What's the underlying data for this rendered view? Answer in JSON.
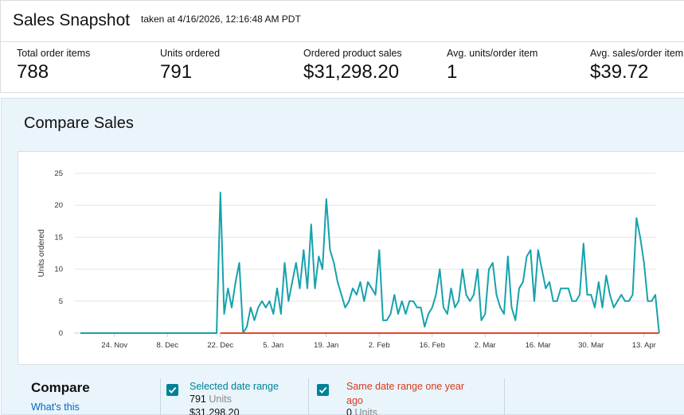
{
  "snapshot": {
    "title": "Sales Snapshot",
    "taken": "taken at 4/16/2026, 12:16:48 AM PDT",
    "metrics": [
      {
        "label": "Total order items",
        "value": "788"
      },
      {
        "label": "Units ordered",
        "value": "791"
      },
      {
        "label": "Ordered product sales",
        "value": "$31,298.20"
      },
      {
        "label": "Avg. units/order item",
        "value": "1"
      },
      {
        "label": "Avg. sales/order item",
        "value": "$39.72"
      }
    ]
  },
  "compare": {
    "title": "Compare Sales",
    "legend_title": "Compare",
    "legend_link": "What's this",
    "series": [
      {
        "label": "Selected date range",
        "units_value": "791",
        "units_word": "Units",
        "sales": "$31,298.20",
        "color": "#16a2ad",
        "checked": true
      },
      {
        "label": "Same date range one year ago",
        "units_value": "0",
        "units_word": "Units",
        "color": "#e8442c",
        "checked": true
      }
    ]
  },
  "colors": {
    "selected_line": "#16a2ad",
    "previous_line": "#e8442c",
    "checkbox": "#008296",
    "link": "#0066c0",
    "panel_bg": "#e9f4fb"
  },
  "chart_data": {
    "type": "line",
    "ylabel": "Units ordered",
    "ylim": [
      0,
      25
    ],
    "yticks": [
      0,
      5,
      10,
      15,
      20,
      25
    ],
    "xlim": [
      "2025-11-15",
      "2026-04-16"
    ],
    "xticks": [
      {
        "label": "24. Nov",
        "date": "2025-11-24"
      },
      {
        "label": "8. Dec",
        "date": "2025-12-08"
      },
      {
        "label": "22. Dec",
        "date": "2025-12-22"
      },
      {
        "label": "5. Jan",
        "date": "2026-01-05"
      },
      {
        "label": "19. Jan",
        "date": "2026-01-19"
      },
      {
        "label": "2. Feb",
        "date": "2026-02-02"
      },
      {
        "label": "16. Feb",
        "date": "2026-02-16"
      },
      {
        "label": "2. Mar",
        "date": "2026-03-02"
      },
      {
        "label": "16. Mar",
        "date": "2026-03-16"
      },
      {
        "label": "30. Mar",
        "date": "2026-03-30"
      },
      {
        "label": "13. Apr",
        "date": "2026-04-13"
      }
    ],
    "grid": true,
    "series": [
      {
        "name": "Selected date range",
        "points": [
          [
            "2025-11-15",
            0
          ],
          [
            "2025-12-21",
            0
          ],
          [
            "2025-12-22",
            22
          ],
          [
            "2025-12-23",
            3
          ],
          [
            "2025-12-24",
            7
          ],
          [
            "2025-12-25",
            4
          ],
          [
            "2025-12-26",
            8
          ],
          [
            "2025-12-27",
            11
          ],
          [
            "2025-12-28",
            0
          ],
          [
            "2025-12-29",
            1
          ],
          [
            "2025-12-30",
            4
          ],
          [
            "2025-12-31",
            2
          ],
          [
            "2026-01-01",
            4
          ],
          [
            "2026-01-02",
            5
          ],
          [
            "2026-01-03",
            4
          ],
          [
            "2026-01-04",
            5
          ],
          [
            "2026-01-05",
            3
          ],
          [
            "2026-01-06",
            7
          ],
          [
            "2026-01-07",
            3
          ],
          [
            "2026-01-08",
            11
          ],
          [
            "2026-01-09",
            5
          ],
          [
            "2026-01-10",
            8
          ],
          [
            "2026-01-11",
            11
          ],
          [
            "2026-01-12",
            7
          ],
          [
            "2026-01-13",
            13
          ],
          [
            "2026-01-14",
            7
          ],
          [
            "2026-01-15",
            17
          ],
          [
            "2026-01-16",
            7
          ],
          [
            "2026-01-17",
            12
          ],
          [
            "2026-01-18",
            10
          ],
          [
            "2026-01-19",
            21
          ],
          [
            "2026-01-20",
            13
          ],
          [
            "2026-01-21",
            11
          ],
          [
            "2026-01-22",
            8
          ],
          [
            "2026-01-23",
            6
          ],
          [
            "2026-01-24",
            4
          ],
          [
            "2026-01-25",
            5
          ],
          [
            "2026-01-26",
            7
          ],
          [
            "2026-01-27",
            6
          ],
          [
            "2026-01-28",
            8
          ],
          [
            "2026-01-29",
            5
          ],
          [
            "2026-01-30",
            8
          ],
          [
            "2026-01-31",
            7
          ],
          [
            "2026-02-01",
            6
          ],
          [
            "2026-02-02",
            13
          ],
          [
            "2026-02-03",
            2
          ],
          [
            "2026-02-04",
            2
          ],
          [
            "2026-02-05",
            3
          ],
          [
            "2026-02-06",
            6
          ],
          [
            "2026-02-07",
            3
          ],
          [
            "2026-02-08",
            5
          ],
          [
            "2026-02-09",
            3
          ],
          [
            "2026-02-10",
            5
          ],
          [
            "2026-02-11",
            5
          ],
          [
            "2026-02-12",
            4
          ],
          [
            "2026-02-13",
            4
          ],
          [
            "2026-02-14",
            1
          ],
          [
            "2026-02-15",
            3
          ],
          [
            "2026-02-16",
            4
          ],
          [
            "2026-02-17",
            6
          ],
          [
            "2026-02-18",
            10
          ],
          [
            "2026-02-19",
            4
          ],
          [
            "2026-02-20",
            3
          ],
          [
            "2026-02-21",
            7
          ],
          [
            "2026-02-22",
            4
          ],
          [
            "2026-02-23",
            5
          ],
          [
            "2026-02-24",
            10
          ],
          [
            "2026-02-25",
            6
          ],
          [
            "2026-02-26",
            5
          ],
          [
            "2026-02-27",
            6
          ],
          [
            "2026-02-28",
            10
          ],
          [
            "2026-03-01",
            2
          ],
          [
            "2026-03-02",
            3
          ],
          [
            "2026-03-03",
            10
          ],
          [
            "2026-03-04",
            11
          ],
          [
            "2026-03-05",
            6
          ],
          [
            "2026-03-06",
            4
          ],
          [
            "2026-03-07",
            3
          ],
          [
            "2026-03-08",
            12
          ],
          [
            "2026-03-09",
            4
          ],
          [
            "2026-03-10",
            2
          ],
          [
            "2026-03-11",
            7
          ],
          [
            "2026-03-12",
            8
          ],
          [
            "2026-03-13",
            12
          ],
          [
            "2026-03-14",
            13
          ],
          [
            "2026-03-15",
            5
          ],
          [
            "2026-03-16",
            13
          ],
          [
            "2026-03-17",
            10
          ],
          [
            "2026-03-18",
            7
          ],
          [
            "2026-03-19",
            8
          ],
          [
            "2026-03-20",
            5
          ],
          [
            "2026-03-21",
            5
          ],
          [
            "2026-03-22",
            7
          ],
          [
            "2026-03-23",
            7
          ],
          [
            "2026-03-24",
            7
          ],
          [
            "2026-03-25",
            5
          ],
          [
            "2026-03-26",
            5
          ],
          [
            "2026-03-27",
            6
          ],
          [
            "2026-03-28",
            14
          ],
          [
            "2026-03-29",
            6
          ],
          [
            "2026-03-30",
            6
          ],
          [
            "2026-03-31",
            4
          ],
          [
            "2026-04-01",
            8
          ],
          [
            "2026-04-02",
            4
          ],
          [
            "2026-04-03",
            9
          ],
          [
            "2026-04-04",
            6
          ],
          [
            "2026-04-05",
            4
          ],
          [
            "2026-04-06",
            5
          ],
          [
            "2026-04-07",
            6
          ],
          [
            "2026-04-08",
            5
          ],
          [
            "2026-04-09",
            5
          ],
          [
            "2026-04-10",
            6
          ],
          [
            "2026-04-11",
            18
          ],
          [
            "2026-04-12",
            15
          ],
          [
            "2026-04-13",
            11
          ],
          [
            "2026-04-14",
            5
          ],
          [
            "2026-04-15",
            5
          ],
          [
            "2026-04-16",
            6
          ],
          [
            "2026-04-17",
            0
          ]
        ]
      },
      {
        "name": "Same date range one year ago",
        "points": [
          [
            "2025-12-22",
            0
          ],
          [
            "2026-04-17",
            0
          ]
        ]
      }
    ]
  }
}
